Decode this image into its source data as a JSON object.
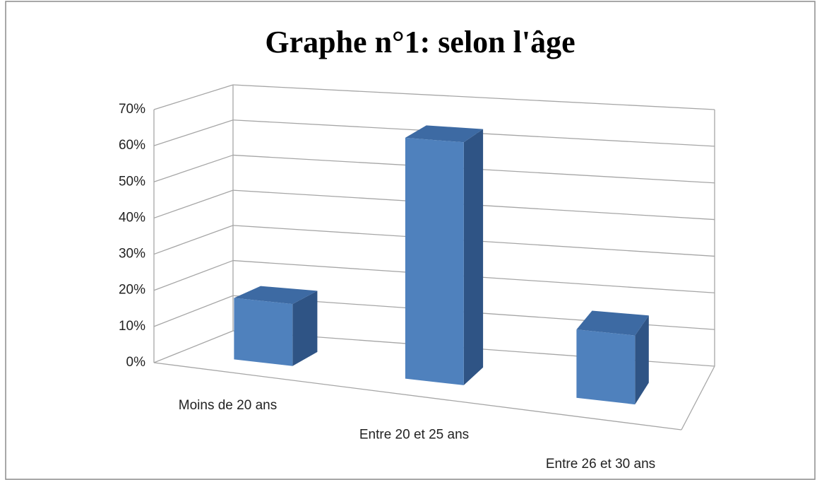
{
  "chart_data": {
    "type": "bar3d",
    "title": "Graphe n°1: selon l'âge",
    "categories": [
      "Moins de 20 ans",
      "Entre 20 et 25 ans",
      "Entre 26 et 30 ans"
    ],
    "values": [
      17,
      65,
      18
    ],
    "color": "#4f81bd",
    "ylim": [
      0,
      70
    ],
    "yticks": [
      {
        "value": 0,
        "label": "0%"
      },
      {
        "value": 10,
        "label": "10%"
      },
      {
        "value": 20,
        "label": "20%"
      },
      {
        "value": 30,
        "label": "30%"
      },
      {
        "value": 40,
        "label": "40%"
      },
      {
        "value": 50,
        "label": "50%"
      },
      {
        "value": 60,
        "label": "60%"
      },
      {
        "value": 70,
        "label": "70%"
      }
    ],
    "grid": true
  }
}
